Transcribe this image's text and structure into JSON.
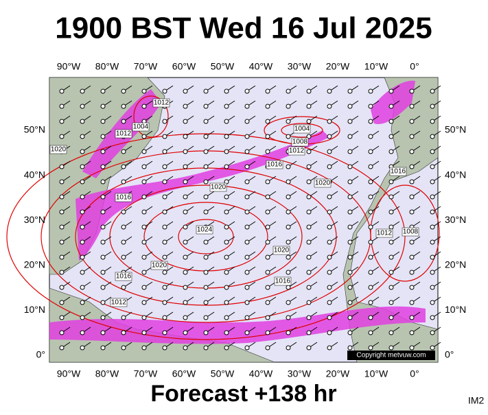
{
  "header": {
    "title": "1900 BST Wed 16 Jul 2025"
  },
  "map": {
    "lon_labels": [
      "90°W",
      "80°W",
      "70°W",
      "60°W",
      "50°W",
      "40°W",
      "30°W",
      "20°W",
      "10°W",
      "0°"
    ],
    "lat_labels": [
      "0°",
      "10°N",
      "20°N",
      "30°N",
      "40°N",
      "50°N"
    ],
    "isobar_labels": [
      "1012",
      "1004",
      "1012",
      "1020",
      "1004",
      "1008",
      "1012",
      "1016",
      "1020",
      "1020",
      "1016",
      "1016",
      "1024",
      "1012",
      "1008",
      "1020",
      "1020",
      "1016",
      "1016",
      "1012"
    ],
    "copyright": "Copyright metvuw.com"
  },
  "footer": {
    "forecast": "Forecast +138 hr",
    "code": "IM2"
  }
}
